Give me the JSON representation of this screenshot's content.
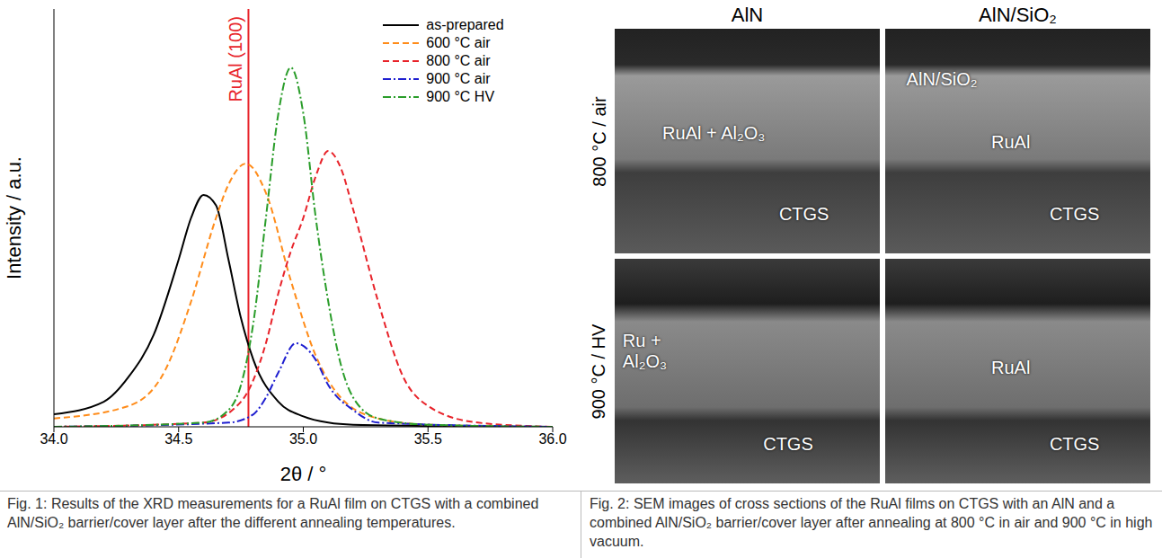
{
  "chart_data": {
    "type": "line",
    "x_label": "2θ / °",
    "y_label": "Intensity / a.u.",
    "xlim": [
      34,
      36
    ],
    "xticks": [
      {
        "value": 34,
        "label": "34.0"
      },
      {
        "value": 34.5,
        "label": "34.5"
      },
      {
        "value": 35,
        "label": "35.0"
      },
      {
        "value": 35.5,
        "label": "35.5"
      },
      {
        "value": 36,
        "label": "36.0"
      }
    ],
    "ylim": [
      0,
      1
    ],
    "tick_labels": "x",
    "legend": "upper right",
    "annotations": [
      {
        "x": 34.78,
        "label": "RuAl (100)",
        "color": "#e8232a"
      }
    ],
    "series": [
      {
        "name": "as-prepared",
        "color": "#000000",
        "line_style": "solid",
        "x": [
          34.0,
          34.2,
          34.3,
          34.4,
          34.5,
          34.55,
          34.6,
          34.65,
          34.7,
          34.75,
          34.8,
          34.9,
          35.0,
          35.1,
          35.2,
          36.0
        ],
        "values": [
          0.03,
          0.06,
          0.12,
          0.22,
          0.4,
          0.5,
          0.555,
          0.53,
          0.4,
          0.26,
          0.16,
          0.06,
          0.025,
          0.01,
          0.005,
          0
        ]
      },
      {
        "name": "600 °C air",
        "color": "#ff8c1a",
        "line_style": "dashed",
        "x": [
          34.0,
          34.3,
          34.45,
          34.55,
          34.65,
          34.7,
          34.77,
          34.85,
          34.95,
          35.05,
          35.15,
          35.3,
          35.5,
          36.0
        ],
        "values": [
          0.02,
          0.05,
          0.14,
          0.3,
          0.5,
          0.58,
          0.63,
          0.56,
          0.35,
          0.17,
          0.07,
          0.02,
          0.005,
          0
        ]
      },
      {
        "name": "800 °C air",
        "color": "#e8232a",
        "line_style": "dashed",
        "x": [
          34.0,
          34.6,
          34.75,
          34.85,
          34.9,
          34.95,
          35.0,
          35.05,
          35.1,
          35.15,
          35.2,
          35.3,
          35.4,
          35.5,
          35.7,
          36.0
        ],
        "values": [
          0,
          0.01,
          0.06,
          0.2,
          0.32,
          0.42,
          0.5,
          0.6,
          0.66,
          0.62,
          0.52,
          0.3,
          0.12,
          0.05,
          0.01,
          0
        ]
      },
      {
        "name": "900 °C air",
        "color": "#1f1fd0",
        "line_style": "dashdot",
        "x": [
          34.0,
          34.7,
          34.8,
          34.85,
          34.9,
          34.97,
          35.05,
          35.1,
          35.2,
          35.3,
          36.0
        ],
        "values": [
          0,
          0.01,
          0.03,
          0.07,
          0.13,
          0.2,
          0.16,
          0.1,
          0.04,
          0.01,
          0
        ]
      },
      {
        "name": "900 °C HV",
        "color": "#2a9d2a",
        "line_style": "dashdot",
        "x": [
          34.0,
          34.6,
          34.7,
          34.75,
          34.8,
          34.85,
          34.9,
          34.95,
          35.0,
          35.05,
          35.1,
          35.15,
          35.2,
          35.3,
          35.5,
          36.0
        ],
        "values": [
          0,
          0.01,
          0.04,
          0.1,
          0.25,
          0.5,
          0.75,
          0.86,
          0.75,
          0.5,
          0.3,
          0.15,
          0.07,
          0.02,
          0.005,
          0
        ]
      }
    ]
  },
  "figure2": {
    "column_heads": [
      "AlN",
      "AlN/SiO₂"
    ],
    "row_heads": [
      "800 °C / air",
      "900 °C / HV"
    ],
    "panels": [
      [
        [
          "RuAl + Al₂O₃",
          "CTGS"
        ],
        [
          "AlN/SiO₂",
          "RuAl",
          "CTGS"
        ]
      ],
      [
        [
          "Ru + Al₂O₃",
          "CTGS"
        ],
        [
          "RuAl",
          "CTGS"
        ]
      ]
    ]
  },
  "captions": [
    "Fig. 1: Results of the XRD measurements for a RuAl film on CTGS with a combined AlN/SiO₂ barrier/cover layer after the different annealing temperatures.",
    "Fig. 2: SEM images of cross sections of the RuAl films on CTGS with an AlN and a combined AlN/SiO₂ barrier/cover layer after annealing at 800 °C in air and 900 °C in high vacuum."
  ]
}
